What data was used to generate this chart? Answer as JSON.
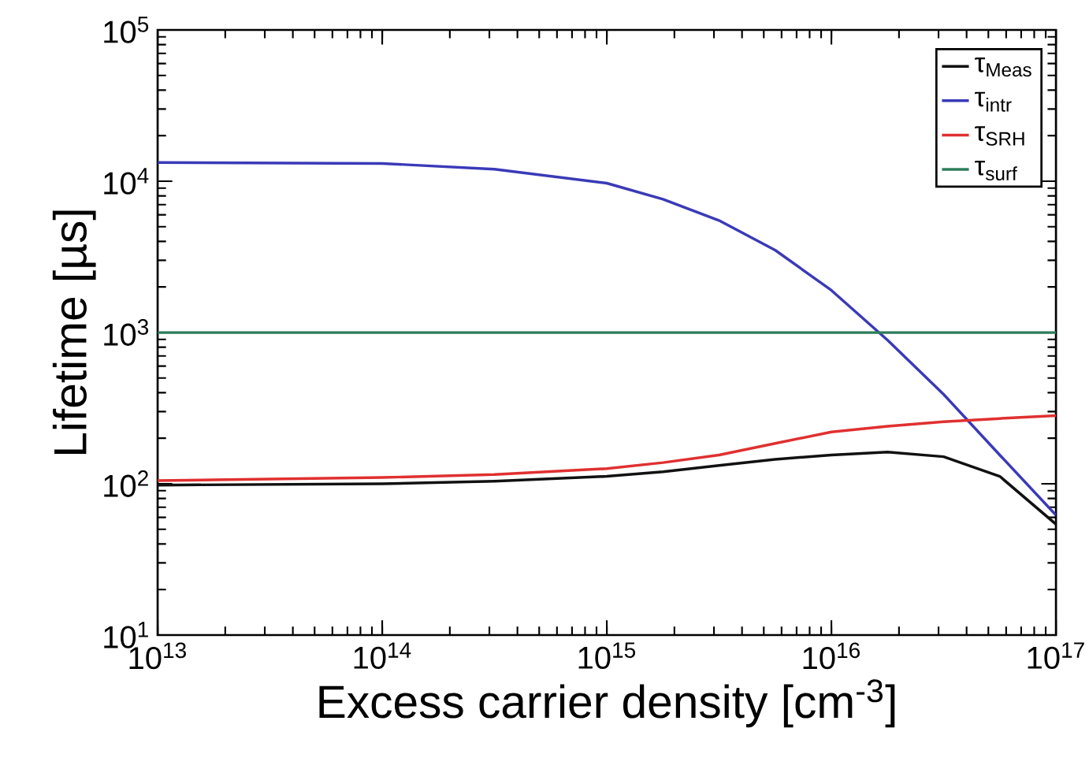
{
  "chart_data": {
    "type": "line",
    "xlabel": "Excess carrier density [cm$^{-3}$]",
    "ylabel": "Lifetime [µs]",
    "log": "xy",
    "xlim": [
      10000000000000.0,
      1e+17
    ],
    "ylim": [
      10,
      100000
    ],
    "xticks": [
      {
        "value": 10000000000000.0,
        "label": "10$^{13}$"
      },
      {
        "value": 100000000000000.0,
        "label": "10$^{14}$"
      },
      {
        "value": 1000000000000000.0,
        "label": "10$^{15}$"
      },
      {
        "value": 1e+16,
        "label": "10$^{16}$"
      },
      {
        "value": 1e+17,
        "label": "10$^{17}$"
      }
    ],
    "yticks": [
      {
        "value": 10,
        "label": "10$^{1}$"
      },
      {
        "value": 100,
        "label": "10$^{2}$"
      },
      {
        "value": 1000,
        "label": "10$^{3}$"
      },
      {
        "value": 10000,
        "label": "10$^{4}$"
      },
      {
        "value": 100000,
        "label": "10$^{5}$"
      }
    ],
    "grid": false,
    "legend": "top right",
    "marker": "none",
    "line_style": "solid",
    "series": [
      {
        "name": "τ$_{Meas}$",
        "color": "#111111",
        "x": [
          10000000000000.0,
          100000000000000.0,
          316000000000000.0,
          1000000000000000.0,
          1780000000000000.0,
          3160000000000000.0,
          5620000000000000.0,
          1e+16,
          1.78e+16,
          3.16e+16,
          5.62e+16,
          1e+17
        ],
        "values": [
          98,
          100,
          104,
          112,
          120,
          132,
          145,
          155,
          162,
          151,
          112,
          54
        ]
      },
      {
        "name": "τ$_{intr}$",
        "color": "#3a3ab8",
        "x": [
          10000000000000.0,
          100000000000000.0,
          316000000000000.0,
          1000000000000000.0,
          1780000000000000.0,
          3160000000000000.0,
          5620000000000000.0,
          1e+16,
          1.78e+16,
          3.16e+16,
          5.62e+16,
          1e+17
        ],
        "values": [
          13300,
          13100,
          12000,
          9700,
          7600,
          5500,
          3500,
          1900,
          890,
          390,
          155,
          62
        ]
      },
      {
        "name": "τ$_{SRH}$",
        "color": "#e03030",
        "x": [
          10000000000000.0,
          100000000000000.0,
          316000000000000.0,
          1000000000000000.0,
          1780000000000000.0,
          3160000000000000.0,
          5620000000000000.0,
          1e+16,
          1.78e+16,
          3.16e+16,
          5.62e+16,
          1e+17
        ],
        "values": [
          105,
          110,
          115,
          126,
          138,
          155,
          185,
          220,
          240,
          257,
          270,
          282
        ]
      },
      {
        "name": "τ$_{surf}$",
        "color": "#2e7d5b",
        "x": [
          10000000000000.0,
          1e+17
        ],
        "values": [
          1000,
          1000
        ]
      }
    ]
  }
}
